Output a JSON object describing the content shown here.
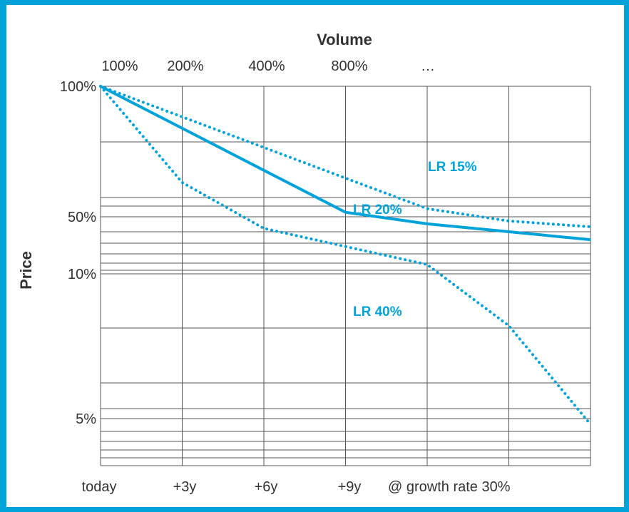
{
  "chart_data": {
    "type": "line",
    "title": "",
    "xlabel_top": "Volume",
    "ylabel": "Price",
    "x_top_ticks": [
      "100%",
      "200%",
      "400%",
      "800%",
      "…"
    ],
    "x_bottom_ticks": [
      "today",
      "+3y",
      "+6y",
      "+9y",
      "@ growth rate 30%"
    ],
    "y_ticks": [
      {
        "label": "100%",
        "value": 1.0
      },
      {
        "label": "50%",
        "value": 0.5
      },
      {
        "label": "10%",
        "value": 0.1
      },
      {
        "label": "5%",
        "value": 0.05
      }
    ],
    "y_scale": "log-style",
    "grid": true,
    "doublings": [
      0,
      1,
      2,
      3,
      4,
      5,
      6
    ],
    "series": [
      {
        "name": "LR 15%",
        "style": "dotted",
        "y": [
          1.0,
          0.85,
          0.7225,
          0.614,
          0.522,
          0.444,
          0.377
        ]
      },
      {
        "name": "LR 20%",
        "style": "solid",
        "y": [
          1.0,
          0.8,
          0.64,
          0.512,
          0.41,
          0.328,
          0.262
        ]
      },
      {
        "name": "LR 40%",
        "style": "dotted",
        "y": [
          1.0,
          0.6,
          0.36,
          0.216,
          0.13,
          0.078,
          0.047
        ]
      }
    ],
    "colors": {
      "line": "#00a3d9",
      "grid": "#555555",
      "frame": "#00a3d9",
      "text": "#333333"
    }
  }
}
